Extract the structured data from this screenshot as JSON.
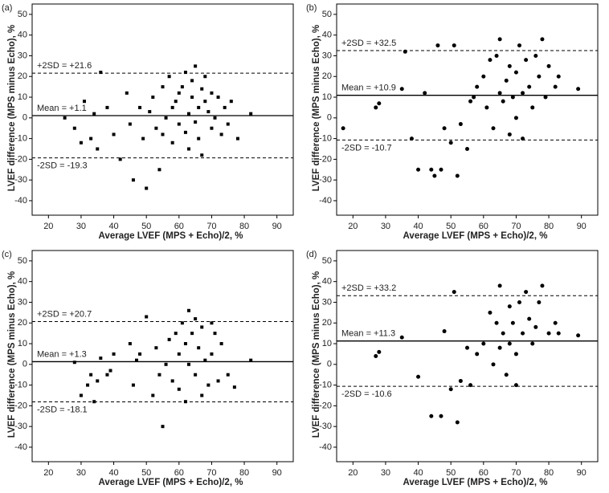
{
  "chart_data": [
    {
      "type": "scatter",
      "title": "(a)",
      "xlabel": "Average LVEF (MPS + Echo)/2, %",
      "ylabel": "LVEF difference (MPS minus Echo), %",
      "marker": "square",
      "color": "#000000",
      "xlim": [
        15,
        95
      ],
      "ylim": [
        -47,
        55
      ],
      "xticks": [
        20,
        30,
        40,
        50,
        60,
        70,
        80,
        90
      ],
      "yticks": [
        -40,
        -30,
        -20,
        -10,
        0,
        10,
        20,
        30,
        40,
        50
      ],
      "lines": [
        {
          "label": "+2SD = +21.6",
          "value": 21.6,
          "style": "dashed"
        },
        {
          "label": "Mean = +1.1",
          "value": 1.1,
          "style": "solid"
        },
        {
          "label": "-2SD = -19.3",
          "value": -19.3,
          "style": "dashed"
        }
      ],
      "x": [
        25,
        28,
        30,
        31,
        33,
        34,
        35,
        36,
        38,
        40,
        42,
        44,
        45,
        46,
        48,
        49,
        50,
        51,
        52,
        53,
        54,
        55,
        55,
        56,
        57,
        58,
        58,
        59,
        60,
        60,
        61,
        62,
        62,
        63,
        63,
        64,
        64,
        65,
        65,
        66,
        66,
        67,
        67,
        68,
        68,
        69,
        70,
        70,
        71,
        72,
        73,
        74,
        75,
        76,
        78,
        82
      ],
      "y": [
        0,
        -5,
        -12,
        8,
        -10,
        2,
        -15,
        22,
        5,
        -8,
        -20,
        12,
        -3,
        -30,
        5,
        -10,
        -34,
        3,
        10,
        -5,
        -25,
        15,
        -8,
        0,
        20,
        5,
        -12,
        8,
        -3,
        12,
        15,
        -7,
        22,
        2,
        -15,
        10,
        18,
        -2,
        25,
        5,
        -10,
        14,
        -18,
        8,
        20,
        3,
        -5,
        12,
        0,
        10,
        -8,
        5,
        -3,
        8,
        -10,
        2
      ]
    },
    {
      "type": "scatter",
      "title": "(b)",
      "xlabel": "Average LVEF (MPS + Echo)/2, %",
      "ylabel": "LVEF difference (MPS minus Echo), %",
      "marker": "circle",
      "color": "#000000",
      "xlim": [
        15,
        95
      ],
      "ylim": [
        -47,
        55
      ],
      "xticks": [
        20,
        30,
        40,
        50,
        60,
        70,
        80,
        90
      ],
      "yticks": [
        -40,
        -30,
        -20,
        -10,
        0,
        10,
        20,
        30,
        40,
        50
      ],
      "lines": [
        {
          "label": "+2SD = +32.5",
          "value": 32.5,
          "style": "dashed"
        },
        {
          "label": "Mean = +10.9",
          "value": 10.9,
          "style": "solid"
        },
        {
          "label": "-2SD = -10.7",
          "value": -10.7,
          "style": "dashed"
        }
      ],
      "x": [
        17,
        27,
        28,
        35,
        36,
        38,
        40,
        42,
        44,
        45,
        46,
        47,
        48,
        50,
        51,
        52,
        53,
        55,
        56,
        57,
        58,
        60,
        61,
        62,
        63,
        64,
        65,
        65,
        66,
        67,
        68,
        68,
        69,
        70,
        70,
        71,
        72,
        72,
        73,
        74,
        75,
        76,
        77,
        78,
        79,
        80,
        82,
        83,
        89
      ],
      "y": [
        -5,
        5,
        7,
        14,
        32,
        -10,
        -25,
        12,
        -25,
        -28,
        35,
        -25,
        -5,
        -12,
        35,
        -28,
        -3,
        -15,
        8,
        10,
        15,
        20,
        5,
        28,
        -5,
        30,
        12,
        38,
        8,
        18,
        25,
        -8,
        10,
        22,
        0,
        35,
        12,
        -10,
        28,
        15,
        5,
        30,
        20,
        38,
        10,
        25,
        15,
        20,
        14
      ]
    },
    {
      "type": "scatter",
      "title": "(c)",
      "xlabel": "Average LVEF (MPS + Echo)/2, %",
      "ylabel": "LVEF difference (MPS minus Echo), %",
      "marker": "square",
      "color": "#000000",
      "xlim": [
        15,
        95
      ],
      "ylim": [
        -47,
        55
      ],
      "xticks": [
        20,
        30,
        40,
        50,
        60,
        70,
        80,
        90
      ],
      "yticks": [
        -40,
        -30,
        -20,
        -10,
        0,
        10,
        20,
        30,
        40,
        50
      ],
      "lines": [
        {
          "label": "+2SD = +20.7",
          "value": 20.7,
          "style": "dashed"
        },
        {
          "label": "Mean = +1.3",
          "value": 1.3,
          "style": "solid"
        },
        {
          "label": "-2SD = -18.1",
          "value": -18.1,
          "style": "dashed"
        }
      ],
      "x": [
        28,
        30,
        32,
        33,
        34,
        35,
        36,
        38,
        39,
        40,
        45,
        46,
        47,
        48,
        50,
        52,
        53,
        54,
        55,
        56,
        57,
        58,
        59,
        60,
        60,
        61,
        62,
        62,
        63,
        63,
        64,
        65,
        65,
        66,
        67,
        67,
        68,
        69,
        70,
        70,
        71,
        72,
        73,
        75,
        77,
        82
      ],
      "y": [
        1,
        -15,
        -10,
        -5,
        -18,
        -8,
        3,
        -5,
        -3,
        5,
        10,
        -10,
        2,
        5,
        23,
        -15,
        8,
        -5,
        -30,
        0,
        12,
        -8,
        15,
        5,
        -12,
        20,
        10,
        -18,
        26,
        0,
        15,
        -5,
        22,
        8,
        -15,
        18,
        2,
        -10,
        20,
        5,
        15,
        -8,
        10,
        -5,
        -11,
        2
      ]
    },
    {
      "type": "scatter",
      "title": "(d)",
      "xlabel": "Average LVEF (MPS + Echo)/2, %",
      "ylabel": "LVEF difference (MPS minus Echo), %",
      "marker": "circle",
      "color": "#000000",
      "xlim": [
        15,
        95
      ],
      "ylim": [
        -47,
        55
      ],
      "xticks": [
        20,
        30,
        40,
        50,
        60,
        70,
        80,
        90
      ],
      "yticks": [
        -40,
        -30,
        -20,
        -10,
        0,
        10,
        20,
        30,
        40,
        50
      ],
      "lines": [
        {
          "label": "+2SD = +33.2",
          "value": 33.2,
          "style": "dashed"
        },
        {
          "label": "Mean = +11.3",
          "value": 11.3,
          "style": "solid"
        },
        {
          "label": "-2SD = -10.6",
          "value": -10.6,
          "style": "dashed"
        }
      ],
      "x": [
        27,
        28,
        35,
        40,
        44,
        47,
        48,
        50,
        51,
        52,
        53,
        55,
        56,
        58,
        60,
        62,
        63,
        64,
        65,
        65,
        66,
        67,
        68,
        68,
        69,
        70,
        70,
        71,
        72,
        73,
        74,
        75,
        76,
        77,
        78,
        80,
        82,
        83,
        89
      ],
      "y": [
        4,
        6,
        13,
        -6,
        -25,
        -25,
        16,
        -12,
        35,
        -28,
        -8,
        8,
        -10,
        5,
        10,
        25,
        0,
        20,
        38,
        8,
        15,
        -5,
        28,
        10,
        20,
        -10,
        5,
        30,
        15,
        35,
        22,
        10,
        18,
        30,
        38,
        15,
        20,
        15,
        14
      ]
    }
  ]
}
